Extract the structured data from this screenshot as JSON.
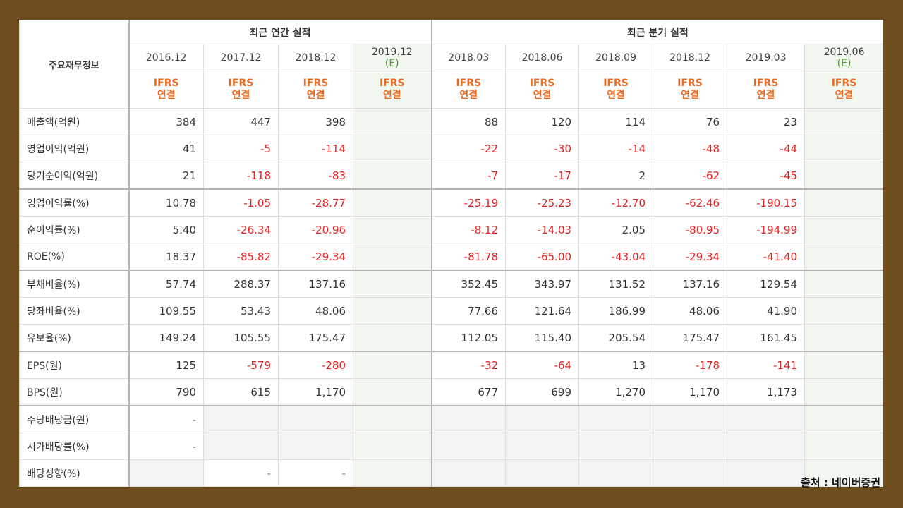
{
  "table": {
    "corner": "주요재무정보",
    "groups": [
      {
        "title": "최근 연간 실적",
        "span": 4
      },
      {
        "title": "최근 분기 실적",
        "span": 6
      }
    ],
    "periods": [
      {
        "date": "2016.12",
        "standard": "IFRS",
        "scope": "연결"
      },
      {
        "date": "2017.12",
        "standard": "IFRS",
        "scope": "연결"
      },
      {
        "date": "2018.12",
        "standard": "IFRS",
        "scope": "연결"
      },
      {
        "date": "2019.12",
        "estimate": "(E)",
        "standard": "IFRS",
        "scope": "연결"
      },
      {
        "date": "2018.03",
        "standard": "IFRS",
        "scope": "연결"
      },
      {
        "date": "2018.06",
        "standard": "IFRS",
        "scope": "연결"
      },
      {
        "date": "2018.09",
        "standard": "IFRS",
        "scope": "연결"
      },
      {
        "date": "2018.12",
        "standard": "IFRS",
        "scope": "연결"
      },
      {
        "date": "2019.03",
        "standard": "IFRS",
        "scope": "연결"
      },
      {
        "date": "2019.06",
        "estimate": "(E)",
        "standard": "IFRS",
        "scope": "연결"
      }
    ],
    "rows": [
      {
        "label": "매출액(억원)",
        "cells": [
          "384",
          "447",
          "398",
          null,
          "88",
          "120",
          "114",
          "76",
          "23",
          null
        ]
      },
      {
        "label": "영업이익(억원)",
        "cells": [
          "41",
          "-5",
          "-114",
          null,
          "-22",
          "-30",
          "-14",
          "-48",
          "-44",
          null
        ]
      },
      {
        "label": "당기순이익(억원)",
        "cells": [
          "21",
          "-118",
          "-83",
          null,
          "-7",
          "-17",
          "2",
          "-62",
          "-45",
          null
        ]
      },
      {
        "label": "영업이익률(%)",
        "cells": [
          "10.78",
          "-1.05",
          "-28.77",
          null,
          "-25.19",
          "-25.23",
          "-12.70",
          "-62.46",
          "-190.15",
          null
        ]
      },
      {
        "label": "순이익률(%)",
        "cells": [
          "5.40",
          "-26.34",
          "-20.96",
          null,
          "-8.12",
          "-14.03",
          "2.05",
          "-80.95",
          "-194.99",
          null
        ]
      },
      {
        "label": "ROE(%)",
        "cells": [
          "18.37",
          "-85.82",
          "-29.34",
          null,
          "-81.78",
          "-65.00",
          "-43.04",
          "-29.34",
          "-41.40",
          null
        ]
      },
      {
        "label": "부채비율(%)",
        "cells": [
          "57.74",
          "288.37",
          "137.16",
          null,
          "352.45",
          "343.97",
          "131.52",
          "137.16",
          "129.54",
          null
        ]
      },
      {
        "label": "당좌비율(%)",
        "cells": [
          "109.55",
          "53.43",
          "48.06",
          null,
          "77.66",
          "121.64",
          "186.99",
          "48.06",
          "41.90",
          null
        ]
      },
      {
        "label": "유보율(%)",
        "cells": [
          "149.24",
          "105.55",
          "175.47",
          null,
          "112.05",
          "115.40",
          "205.54",
          "175.47",
          "161.45",
          null
        ]
      },
      {
        "label": "EPS(원)",
        "cells": [
          "125",
          "-579",
          "-280",
          null,
          "-32",
          "-64",
          "13",
          "-178",
          "-141",
          null
        ]
      },
      {
        "label": "BPS(원)",
        "cells": [
          "790",
          "615",
          "1,170",
          null,
          "677",
          "699",
          "1,270",
          "1,170",
          "1,173",
          null
        ]
      },
      {
        "label": "주당배당금(원)",
        "cells": [
          "-",
          null,
          null,
          null,
          null,
          null,
          null,
          null,
          null,
          null
        ]
      },
      {
        "label": "시가배당률(%)",
        "cells": [
          "-",
          null,
          null,
          null,
          null,
          null,
          null,
          null,
          null,
          null
        ]
      },
      {
        "label": "배당성향(%)",
        "cells": [
          null,
          "-",
          "-",
          null,
          null,
          null,
          null,
          null,
          null,
          null
        ]
      }
    ],
    "group_breaks": [
      3,
      6,
      9,
      11
    ]
  },
  "source": "출처 : 네이버증권"
}
